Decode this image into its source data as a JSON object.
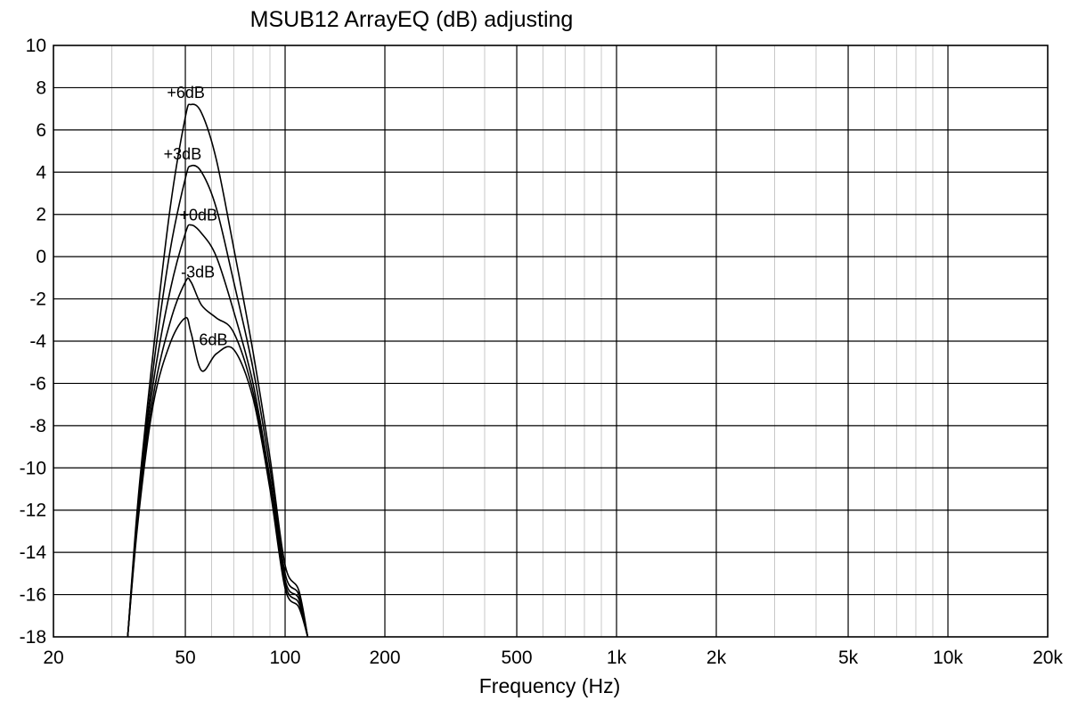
{
  "chart_data": {
    "type": "line",
    "title": "MSUB12 ArrayEQ (dB) adjusting",
    "xlabel": "Frequency (Hz)",
    "ylabel": "",
    "x_scale": "log",
    "xlim": [
      20,
      20000
    ],
    "ylim": [
      -18,
      10
    ],
    "grid": true,
    "legend": "none",
    "x_ticks": [
      {
        "value": 20,
        "label": "20"
      },
      {
        "value": 50,
        "label": "50"
      },
      {
        "value": 100,
        "label": "100"
      },
      {
        "value": 200,
        "label": "200"
      },
      {
        "value": 500,
        "label": "500"
      },
      {
        "value": 1000,
        "label": "1k"
      },
      {
        "value": 2000,
        "label": "2k"
      },
      {
        "value": 5000,
        "label": "5k"
      },
      {
        "value": 10000,
        "label": "10k"
      },
      {
        "value": 20000,
        "label": "20k"
      }
    ],
    "y_ticks": [
      10,
      8,
      6,
      4,
      2,
      0,
      -2,
      -4,
      -6,
      -8,
      -10,
      -12,
      -14,
      -16,
      -18
    ],
    "series": [
      {
        "name": "+6dB",
        "label_at": [
          44,
          7.8
        ],
        "x": [
          33.5,
          36,
          40,
          45,
          50,
          52,
          56,
          62,
          70,
          80,
          90,
          100,
          110,
          117
        ],
        "y": [
          -18,
          -11.5,
          -4.5,
          2.3,
          6.6,
          7.2,
          6.8,
          4.6,
          0.4,
          -4.5,
          -9.5,
          -14.6,
          -15.8,
          -18
        ]
      },
      {
        "name": "+3dB",
        "label_at": [
          43,
          4.9
        ],
        "x": [
          33.5,
          36,
          40,
          45,
          50,
          52,
          56,
          62,
          70,
          80,
          90,
          100,
          110,
          117
        ],
        "y": [
          -18,
          -11.8,
          -5.3,
          0.3,
          3.7,
          4.3,
          4.0,
          2.3,
          -1.2,
          -5.3,
          -10.0,
          -15.0,
          -16.0,
          -18
        ]
      },
      {
        "name": "+0dB",
        "label_at": [
          48,
          2.0
        ],
        "x": [
          33.5,
          36,
          40,
          45,
          50,
          52,
          56,
          62,
          70,
          80,
          90,
          100,
          110,
          117
        ],
        "y": [
          -18,
          -12.0,
          -6.0,
          -1.6,
          1.1,
          1.5,
          1.1,
          0.0,
          -2.6,
          -6.0,
          -10.5,
          -15.3,
          -16.2,
          -18
        ]
      },
      {
        "name": "-3dB",
        "label_at": [
          48.5,
          -0.7
        ],
        "x": [
          33.5,
          36,
          40,
          45,
          50,
          52,
          56,
          62,
          70,
          80,
          90,
          100,
          110,
          117
        ],
        "y": [
          -18,
          -12.3,
          -6.6,
          -3.1,
          -1.2,
          -1.2,
          -2.3,
          -2.9,
          -3.6,
          -6.4,
          -10.8,
          -15.5,
          -16.4,
          -18
        ]
      },
      {
        "name": "-6dB",
        "label_at": [
          53,
          -3.9
        ],
        "x": [
          33.5,
          36,
          40,
          45,
          50,
          52,
          56,
          62,
          70,
          80,
          90,
          100,
          110,
          117
        ],
        "y": [
          -18,
          -12.5,
          -7.0,
          -4.1,
          -2.9,
          -3.6,
          -5.4,
          -4.6,
          -4.4,
          -6.7,
          -11.0,
          -15.7,
          -16.6,
          -18
        ]
      }
    ]
  }
}
